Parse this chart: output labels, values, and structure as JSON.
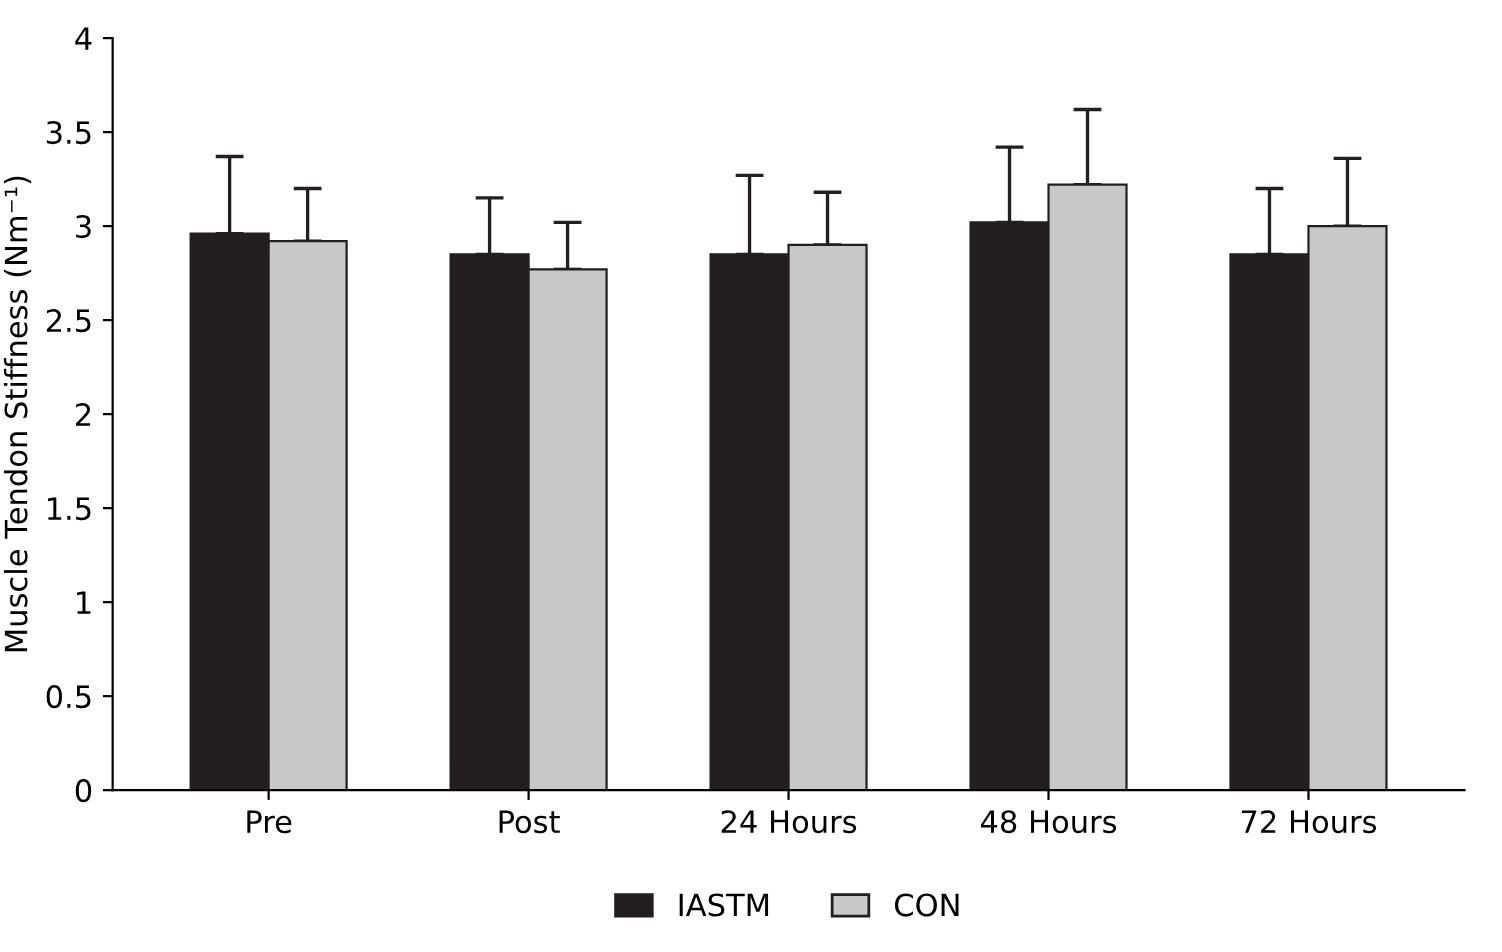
{
  "chart_data": {
    "type": "bar",
    "ylabel": "Muscle Tendon Stiffness (Nm⁻¹)",
    "categories": [
      "Pre",
      "Post",
      "24 Hours",
      "48 Hours",
      "72 Hours"
    ],
    "series": [
      {
        "name": "IASTM",
        "color": "#231f20",
        "values": [
          2.96,
          2.85,
          2.85,
          3.02,
          2.85
        ],
        "errors": [
          [
            2.96,
            3.37
          ],
          [
            2.85,
            3.15
          ],
          [
            2.85,
            3.27
          ],
          [
            3.02,
            3.42
          ],
          [
            2.85,
            3.2
          ]
        ]
      },
      {
        "name": "CON",
        "color": "#c8c8c8",
        "values": [
          2.92,
          2.77,
          2.9,
          3.22,
          3.0
        ],
        "errors": [
          [
            2.92,
            3.2
          ],
          [
            2.77,
            3.02
          ],
          [
            2.9,
            3.18
          ],
          [
            3.22,
            3.62
          ],
          [
            3.0,
            3.36
          ]
        ]
      }
    ],
    "ylim": [
      0,
      4
    ],
    "yticks": [
      0,
      {
        "value": 0.5,
        "label": "0.5"
      },
      1,
      {
        "value": 1.5,
        "label": "1.5"
      },
      2,
      {
        "value": 2.5,
        "label": "2.5"
      },
      3,
      {
        "value": 3.5,
        "label": "3.5"
      },
      4
    ],
    "grid": false,
    "legend": "bottom"
  }
}
